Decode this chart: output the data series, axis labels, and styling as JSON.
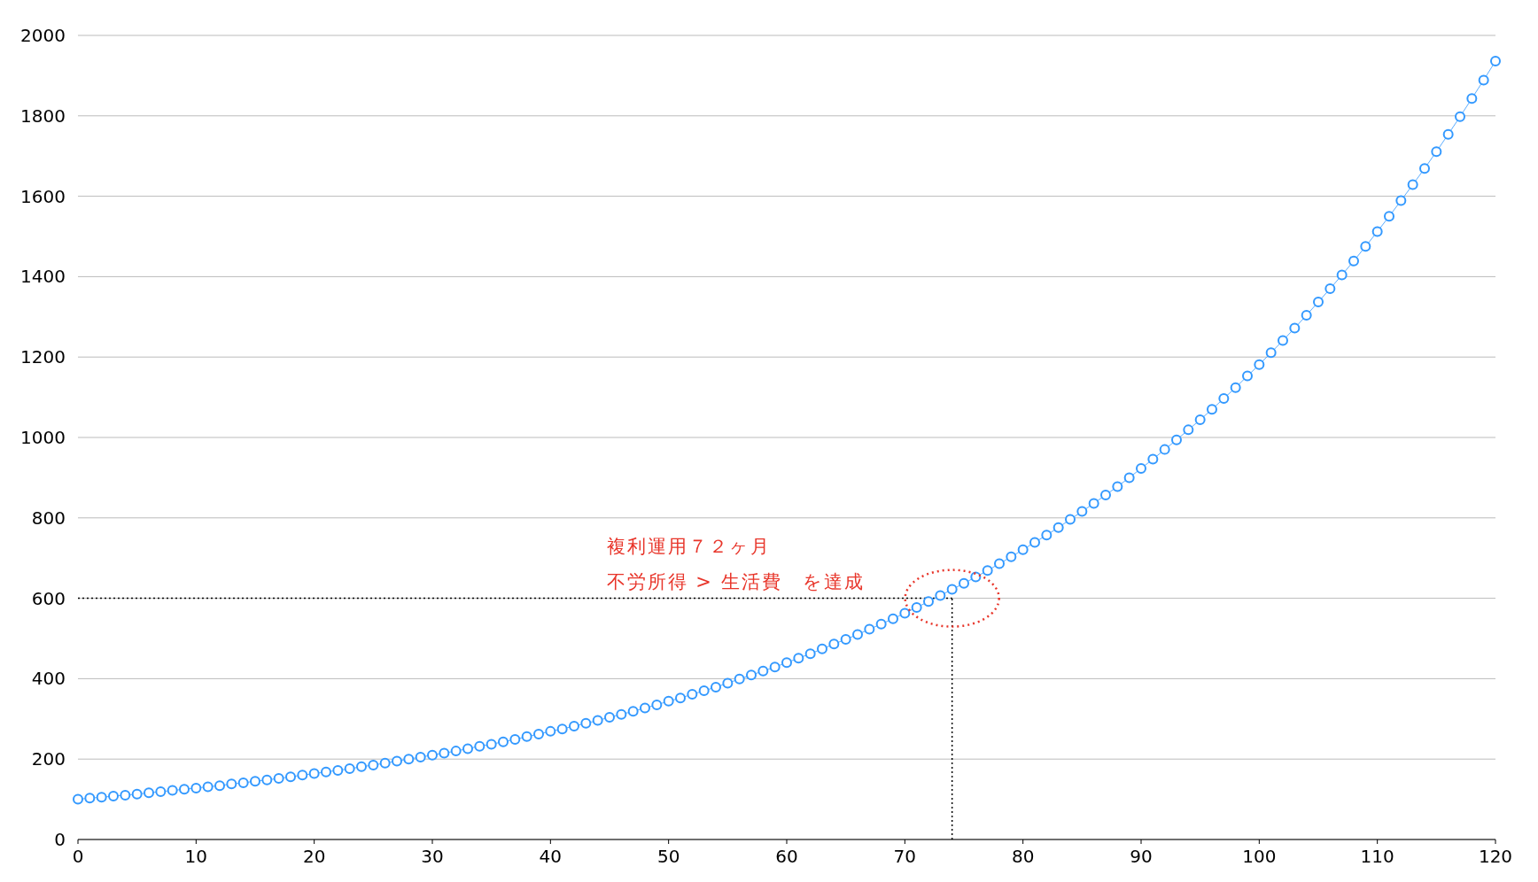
{
  "chart_data": {
    "type": "line",
    "x": [
      0,
      1,
      2,
      3,
      4,
      5,
      6,
      7,
      8,
      9,
      10,
      11,
      12,
      13,
      14,
      15,
      16,
      17,
      18,
      19,
      20,
      21,
      22,
      23,
      24,
      25,
      26,
      27,
      28,
      29,
      30,
      31,
      32,
      33,
      34,
      35,
      36,
      37,
      38,
      39,
      40,
      41,
      42,
      43,
      44,
      45,
      46,
      47,
      48,
      49,
      50,
      51,
      52,
      53,
      54,
      55,
      56,
      57,
      58,
      59,
      60,
      61,
      62,
      63,
      64,
      65,
      66,
      67,
      68,
      69,
      70,
      71,
      72,
      73,
      74,
      75,
      76,
      77,
      78,
      79,
      80,
      81,
      82,
      83,
      84,
      85,
      86,
      87,
      88,
      89,
      90,
      91,
      92,
      93,
      94,
      95,
      96,
      97,
      98,
      99,
      100,
      101,
      102,
      103,
      104,
      105,
      106,
      107,
      108,
      109,
      110,
      111,
      112,
      113,
      114,
      115,
      116,
      117,
      118,
      119,
      120
    ],
    "series": [
      {
        "color": "#3399ff",
        "values": [
          100,
          103,
          105,
          108,
          110,
          113,
          116,
          119,
          122,
          125,
          128,
          131,
          134,
          138,
          141,
          145,
          148,
          152,
          156,
          160,
          164,
          168,
          172,
          176,
          181,
          185,
          190,
          195,
          200,
          205,
          210,
          215,
          220,
          226,
          232,
          237,
          243,
          249,
          256,
          262,
          269,
          275,
          282,
          289,
          296,
          304,
          311,
          319,
          327,
          335,
          344,
          352,
          361,
          370,
          379,
          389,
          399,
          409,
          419,
          429,
          440,
          451,
          462,
          474,
          486,
          498,
          510,
          523,
          536,
          549,
          563,
          577,
          592,
          607,
          622,
          637,
          653,
          669,
          686,
          703,
          721,
          739,
          757,
          776,
          796,
          816,
          836,
          857,
          878,
          900,
          923,
          946,
          970,
          994,
          1019,
          1044,
          1070,
          1097,
          1124,
          1153,
          1181,
          1211,
          1241,
          1272,
          1304,
          1337,
          1370,
          1404,
          1439,
          1475,
          1512,
          1550,
          1589,
          1629,
          1669,
          1711,
          1754,
          1798,
          1843,
          1889,
          1936
        ]
      }
    ],
    "xlim": [
      0,
      120
    ],
    "xticks": [
      0,
      10,
      20,
      30,
      40,
      50,
      60,
      70,
      80,
      90,
      100,
      110,
      120
    ],
    "ylim": [
      0,
      2000
    ],
    "yticks": [
      0,
      200,
      400,
      600,
      800,
      1000,
      1200,
      1400,
      1600,
      1800,
      2000
    ],
    "grid": "y",
    "marker": "circle",
    "line_style": "solid",
    "ref_lines": [
      {
        "axis": "y",
        "value": 600,
        "color": "#000000",
        "line_style": "dotted"
      },
      {
        "axis": "x",
        "value": 74,
        "color": "#000000",
        "line_style": "dotted"
      }
    ],
    "annotations": [
      "複利運用７２ヶ月",
      "不労所得 > 生活費　を達成"
    ]
  }
}
